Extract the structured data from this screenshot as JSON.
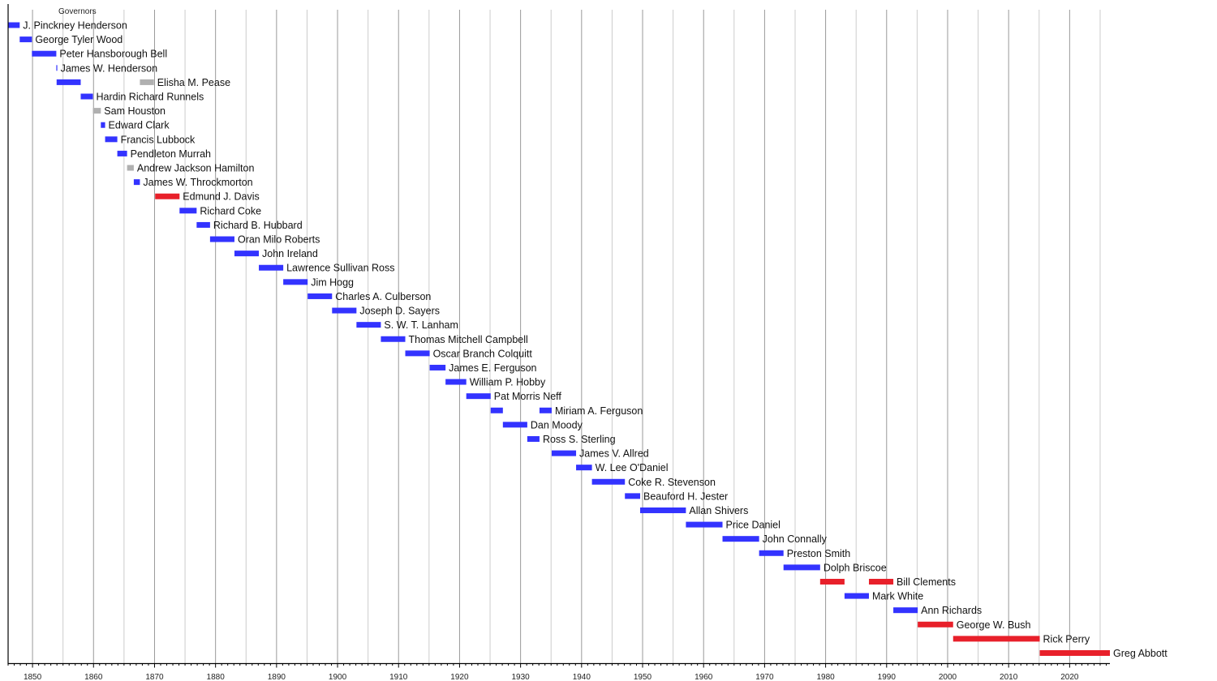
{
  "chart_data": {
    "type": "timeline",
    "title": "Governors",
    "xlabel": "",
    "ylabel": "",
    "xlim": [
      1846,
      2026.6
    ],
    "x_ticks": [
      1850,
      1860,
      1870,
      1880,
      1890,
      1900,
      1910,
      1920,
      1930,
      1940,
      1950,
      1960,
      1970,
      1980,
      1990,
      2000,
      2010,
      2020
    ],
    "grid": true,
    "colors": {
      "blue": "#3333ff",
      "red": "#e8202a",
      "gray": "#b0b0b0"
    },
    "rows": [
      {
        "name": "J. Pinckney Henderson",
        "terms": [
          [
            1846,
            1847.9,
            "blue"
          ]
        ]
      },
      {
        "name": "George Tyler Wood",
        "terms": [
          [
            1847.9,
            1849.9,
            "blue"
          ]
        ]
      },
      {
        "name": "Peter Hansborough Bell",
        "terms": [
          [
            1849.9,
            1853.9,
            "blue"
          ]
        ]
      },
      {
        "name": "James W. Henderson",
        "terms": [
          [
            1853.9,
            1853.95,
            "blue"
          ]
        ]
      },
      {
        "name": "Elisha M. Pease",
        "terms": [
          [
            1853.95,
            1857.9,
            "blue"
          ],
          [
            1867.6,
            1869.9,
            "gray"
          ]
        ]
      },
      {
        "name": "Hardin Richard Runnels",
        "terms": [
          [
            1857.9,
            1859.9,
            "blue"
          ]
        ]
      },
      {
        "name": "Sam Houston",
        "terms": [
          [
            1859.9,
            1861.2,
            "gray"
          ]
        ]
      },
      {
        "name": "Edward Clark",
        "terms": [
          [
            1861.2,
            1861.9,
            "blue"
          ]
        ]
      },
      {
        "name": "Francis Lubbock",
        "terms": [
          [
            1861.9,
            1863.9,
            "blue"
          ]
        ]
      },
      {
        "name": "Pendleton Murrah",
        "terms": [
          [
            1863.9,
            1865.5,
            "blue"
          ]
        ]
      },
      {
        "name": "Andrew Jackson Hamilton",
        "terms": [
          [
            1865.5,
            1866.6,
            "gray"
          ]
        ]
      },
      {
        "name": "James W. Throckmorton",
        "terms": [
          [
            1866.6,
            1867.6,
            "blue"
          ]
        ]
      },
      {
        "name": "Edmund J. Davis",
        "terms": [
          [
            1870.1,
            1874.1,
            "red"
          ]
        ]
      },
      {
        "name": "Richard Coke",
        "terms": [
          [
            1874.1,
            1876.9,
            "blue"
          ]
        ]
      },
      {
        "name": "Richard B. Hubbard",
        "terms": [
          [
            1876.9,
            1879.1,
            "blue"
          ]
        ]
      },
      {
        "name": "Oran Milo Roberts",
        "terms": [
          [
            1879.1,
            1883.1,
            "blue"
          ]
        ]
      },
      {
        "name": "John Ireland",
        "terms": [
          [
            1883.1,
            1887.1,
            "blue"
          ]
        ]
      },
      {
        "name": "Lawrence Sullivan Ross",
        "terms": [
          [
            1887.1,
            1891.1,
            "blue"
          ]
        ]
      },
      {
        "name": "Jim Hogg",
        "terms": [
          [
            1891.1,
            1895.1,
            "blue"
          ]
        ]
      },
      {
        "name": "Charles A. Culberson",
        "terms": [
          [
            1895.1,
            1899.1,
            "blue"
          ]
        ]
      },
      {
        "name": "Joseph D. Sayers",
        "terms": [
          [
            1899.1,
            1903.1,
            "blue"
          ]
        ]
      },
      {
        "name": "S. W. T. Lanham",
        "terms": [
          [
            1903.1,
            1907.1,
            "blue"
          ]
        ]
      },
      {
        "name": "Thomas Mitchell Campbell",
        "terms": [
          [
            1907.1,
            1911.1,
            "blue"
          ]
        ]
      },
      {
        "name": "Oscar Branch Colquitt",
        "terms": [
          [
            1911.1,
            1915.1,
            "blue"
          ]
        ]
      },
      {
        "name": "James E. Ferguson",
        "terms": [
          [
            1915.1,
            1917.7,
            "blue"
          ]
        ]
      },
      {
        "name": "William P. Hobby",
        "terms": [
          [
            1917.7,
            1921.1,
            "blue"
          ]
        ]
      },
      {
        "name": "Pat Morris Neff",
        "terms": [
          [
            1921.1,
            1925.1,
            "blue"
          ]
        ]
      },
      {
        "name": "Miriam A. Ferguson",
        "terms": [
          [
            1925.1,
            1927.1,
            "blue"
          ],
          [
            1933.1,
            1935.1,
            "blue"
          ]
        ]
      },
      {
        "name": "Dan Moody",
        "terms": [
          [
            1927.1,
            1931.1,
            "blue"
          ]
        ]
      },
      {
        "name": "Ross S. Sterling",
        "terms": [
          [
            1931.1,
            1933.1,
            "blue"
          ]
        ]
      },
      {
        "name": "James V. Allred",
        "terms": [
          [
            1935.1,
            1939.1,
            "blue"
          ]
        ]
      },
      {
        "name": "W. Lee O'Daniel",
        "terms": [
          [
            1939.1,
            1941.7,
            "blue"
          ]
        ]
      },
      {
        "name": "Coke R. Stevenson",
        "terms": [
          [
            1941.7,
            1947.1,
            "blue"
          ]
        ]
      },
      {
        "name": "Beauford H. Jester",
        "terms": [
          [
            1947.1,
            1949.6,
            "blue"
          ]
        ]
      },
      {
        "name": "Allan Shivers",
        "terms": [
          [
            1949.6,
            1957.1,
            "blue"
          ]
        ]
      },
      {
        "name": "Price Daniel",
        "terms": [
          [
            1957.1,
            1963.1,
            "blue"
          ]
        ]
      },
      {
        "name": "John Connally",
        "terms": [
          [
            1963.1,
            1969.1,
            "blue"
          ]
        ]
      },
      {
        "name": "Preston Smith",
        "terms": [
          [
            1969.1,
            1973.1,
            "blue"
          ]
        ]
      },
      {
        "name": "Dolph Briscoe",
        "terms": [
          [
            1973.1,
            1979.1,
            "blue"
          ]
        ]
      },
      {
        "name": "Bill Clements",
        "terms": [
          [
            1979.1,
            1983.1,
            "red"
          ],
          [
            1987.1,
            1991.1,
            "red"
          ]
        ]
      },
      {
        "name": "Mark White",
        "terms": [
          [
            1983.1,
            1987.1,
            "blue"
          ]
        ]
      },
      {
        "name": "Ann Richards",
        "terms": [
          [
            1991.1,
            1995.1,
            "blue"
          ]
        ]
      },
      {
        "name": "George W. Bush",
        "terms": [
          [
            1995.1,
            2000.9,
            "red"
          ]
        ]
      },
      {
        "name": "Rick Perry",
        "terms": [
          [
            2000.9,
            2015.1,
            "red"
          ]
        ]
      },
      {
        "name": "Greg Abbott",
        "terms": [
          [
            2015.1,
            2026.6,
            "red"
          ]
        ]
      }
    ]
  }
}
